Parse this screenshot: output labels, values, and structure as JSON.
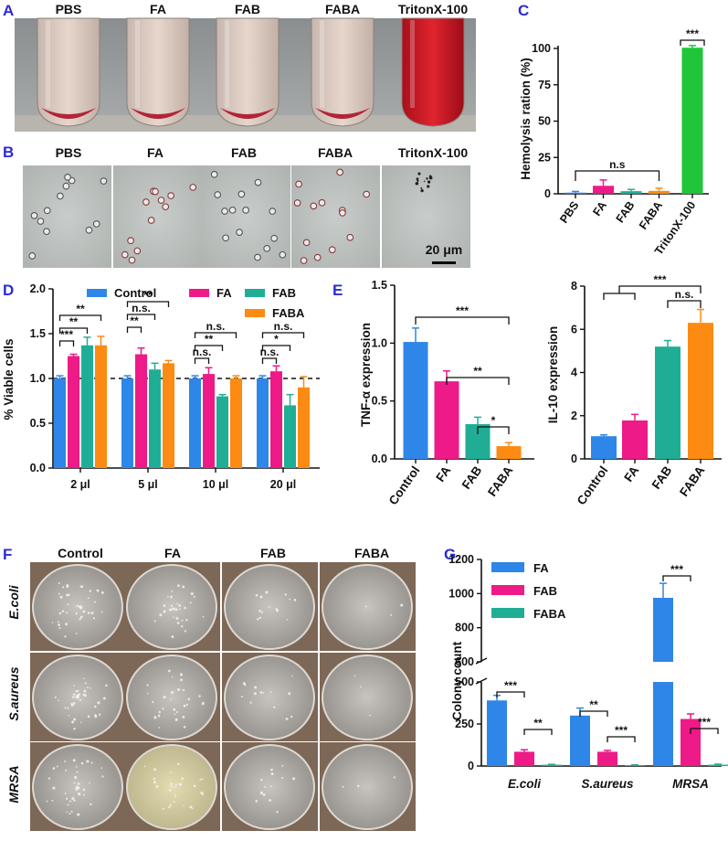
{
  "colors": {
    "blue": "#2e86e8",
    "pink": "#ee1a87",
    "teal": "#1fae95",
    "orange": "#fd8a12",
    "green": "#20c53a",
    "label": "#2b2bd6"
  },
  "panel_labels": {
    "A": "A",
    "B": "B",
    "C": "C",
    "D": "D",
    "E": "E",
    "F": "F",
    "G": "G"
  },
  "panel_a": {
    "tubes": [
      "PBS",
      "FA",
      "FAB",
      "FABA",
      "TritonX-100"
    ]
  },
  "panel_b": {
    "fields": [
      "PBS",
      "FA",
      "FAB",
      "FABA",
      "TritonX-100"
    ],
    "scale_bar": "20 μm"
  },
  "panel_f": {
    "columns": [
      "Control",
      "FA",
      "FAB",
      "FABA"
    ],
    "rows": [
      "E.coli",
      "S.aureus",
      "MRSA"
    ]
  },
  "chart_data": [
    {
      "id": "C",
      "type": "bar",
      "title": "",
      "categories": [
        "PBS",
        "FA",
        "FAB",
        "FABA",
        "TritonX-100"
      ],
      "values": [
        0.8,
        5.5,
        1.8,
        2,
        100.5
      ],
      "errors": [
        0.8,
        4,
        1.2,
        1.8,
        1.5
      ],
      "ylabel": "Hemolysis ration (%)",
      "ylim": [
        0,
        100
      ],
      "yticks": [
        "0",
        "25",
        "50",
        "75",
        "100"
      ],
      "annotations": [
        {
          "label": "n.s",
          "from": "PBS",
          "to": "FABA"
        },
        {
          "label": "***",
          "from": "TritonX-100",
          "to": "TritonX-100"
        }
      ]
    },
    {
      "id": "D",
      "type": "bar",
      "title": "",
      "categories": [
        "2 μl",
        "5 μl",
        "10 μl",
        "20 μl"
      ],
      "series": [
        {
          "name": "Control",
          "values": [
            1.0,
            1.0,
            1.0,
            1.0
          ],
          "errors": [
            0.03,
            0.03,
            0.03,
            0.03
          ]
        },
        {
          "name": "FA",
          "values": [
            1.25,
            1.27,
            1.05,
            1.08
          ],
          "errors": [
            0.02,
            0.07,
            0.07,
            0.06
          ]
        },
        {
          "name": "FAB",
          "values": [
            1.37,
            1.1,
            0.8,
            0.7
          ],
          "errors": [
            0.09,
            0.07,
            0.02,
            0.12
          ]
        },
        {
          "name": "FABA",
          "values": [
            1.37,
            1.17,
            1.0,
            0.9
          ],
          "errors": [
            0.1,
            0.03,
            0.03,
            0.12
          ]
        }
      ],
      "ylabel": "% Viable cells",
      "ylim": [
        0,
        2.0
      ],
      "yticks": [
        "0.0",
        "0.5",
        "1.0",
        "1.5",
        "2.0"
      ],
      "reference_line": 1.0,
      "annotations": [
        {
          "group": "2 μl",
          "labels": [
            "***",
            "**",
            "**"
          ]
        },
        {
          "group": "5 μl",
          "labels": [
            "**",
            "n.s.",
            "**"
          ]
        },
        {
          "group": "10 μl",
          "labels": [
            "n.s.",
            "**",
            "n.s."
          ]
        },
        {
          "group": "20 μl",
          "labels": [
            "n.s.",
            "*",
            "n.s."
          ]
        }
      ]
    },
    {
      "id": "E1",
      "type": "bar",
      "title": "",
      "categories": [
        "Control",
        "FA",
        "FAB",
        "FABA"
      ],
      "values": [
        1.01,
        0.67,
        0.3,
        0.11
      ],
      "errors": [
        0.12,
        0.09,
        0.06,
        0.03
      ],
      "ylabel": "TNF-α expression",
      "ylim": [
        0,
        1.5
      ],
      "yticks": [
        "0.0",
        "0.5",
        "1.0",
        "1.5"
      ],
      "annotations": [
        {
          "label": "***",
          "from": "Control",
          "to": "FABA"
        },
        {
          "label": "**",
          "from": "FA",
          "to": "FABA"
        },
        {
          "label": "*",
          "from": "FAB",
          "to": "FABA"
        }
      ]
    },
    {
      "id": "E2",
      "type": "bar",
      "title": "",
      "categories": [
        "Control",
        "FA",
        "FAB",
        "FABA"
      ],
      "values": [
        1.05,
        1.78,
        5.2,
        6.3
      ],
      "errors": [
        0.06,
        0.28,
        0.28,
        0.62
      ],
      "ylabel": "IL-10 expression",
      "ylim": [
        0,
        8
      ],
      "yticks": [
        "0",
        "2",
        "4",
        "6",
        "8"
      ],
      "annotations": [
        {
          "label": "***",
          "from": "Control,FA",
          "to": "FABA"
        },
        {
          "label": "n.s.",
          "from": "FAB",
          "to": "FABA"
        }
      ]
    },
    {
      "id": "G",
      "type": "bar",
      "title": "",
      "categories": [
        "E.coli",
        "S.aureus",
        "MRSA"
      ],
      "series": [
        {
          "name": "FA",
          "values": [
            390,
            300,
            975
          ],
          "errors": [
            30,
            45,
            85
          ]
        },
        {
          "name": "FAB",
          "values": [
            85,
            85,
            280
          ],
          "errors": [
            12,
            8,
            30
          ]
        },
        {
          "name": "FABA",
          "values": [
            8,
            5,
            8
          ],
          "errors": [
            2,
            2,
            3
          ]
        }
      ],
      "ylabel": "Colony count",
      "ylim": [
        0,
        1200
      ],
      "axis_break": [
        500,
        600
      ],
      "yticks": [
        "0",
        "250",
        "500",
        "600",
        "800",
        "1000",
        "1200"
      ],
      "annotations": [
        {
          "group": "E.coli",
          "labels": [
            "***",
            "**"
          ]
        },
        {
          "group": "S.aureus",
          "labels": [
            "**",
            "***"
          ]
        },
        {
          "group": "MRSA",
          "labels": [
            "***",
            "***"
          ]
        }
      ]
    }
  ]
}
